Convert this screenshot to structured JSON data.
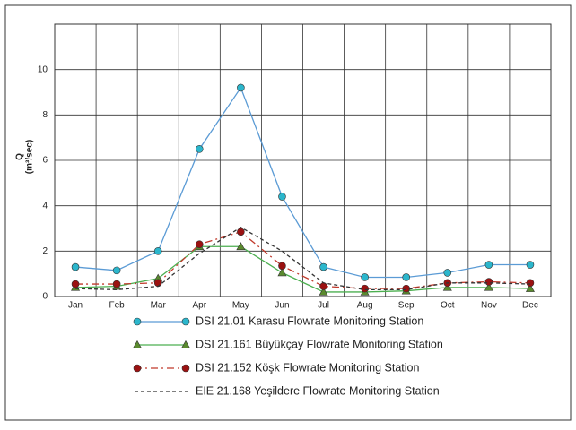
{
  "chart_data": {
    "type": "line",
    "y_label": "Q",
    "y_label_unit": "(m³/sec)",
    "categories": [
      "Jan",
      "Feb",
      "Mar",
      "Apr",
      "May",
      "Jun",
      "Jul",
      "Aug",
      "Sep",
      "Oct",
      "Nov",
      "Dec"
    ],
    "series": [
      {
        "name": "DSI 21.01 Karasu Flowrate Monitoring Station",
        "color": "#5b9bd5",
        "marker": "circle",
        "marker_color": "#2bb6cc",
        "dash": "solid",
        "values": [
          1.3,
          1.15,
          2.0,
          6.5,
          9.2,
          4.4,
          1.3,
          0.85,
          0.85,
          1.05,
          1.4,
          1.4
        ]
      },
      {
        "name": "DSI 21.161 Büyükçay Flowrate Monitoring Station",
        "color": "#4caf50",
        "marker": "triangle",
        "marker_color": "#5a8a2e",
        "dash": "solid",
        "values": [
          0.4,
          0.45,
          0.8,
          2.2,
          2.2,
          1.05,
          0.2,
          0.2,
          0.25,
          0.4,
          0.4,
          0.35
        ]
      },
      {
        "name": "DSI 21.152 Köşk Flowrate Monitoring Station",
        "color": "#c0392b",
        "marker": "circle",
        "marker_color": "#9b1111",
        "dash": "dash-dot",
        "values": [
          0.55,
          0.55,
          0.6,
          2.3,
          2.85,
          1.35,
          0.45,
          0.35,
          0.35,
          0.6,
          0.65,
          0.6
        ]
      },
      {
        "name": "EIE 21.168 Yeşildere Flowrate Monitoring Station",
        "color": "#333333",
        "marker": null,
        "marker_color": null,
        "dash": "dash",
        "values": [
          0.35,
          0.3,
          0.45,
          1.9,
          3.05,
          2.0,
          0.6,
          0.3,
          0.3,
          0.6,
          0.6,
          0.55
        ]
      }
    ],
    "ylim": [
      0,
      12
    ],
    "yticks": [
      0,
      2,
      4,
      6,
      8,
      10
    ],
    "grid": true
  }
}
